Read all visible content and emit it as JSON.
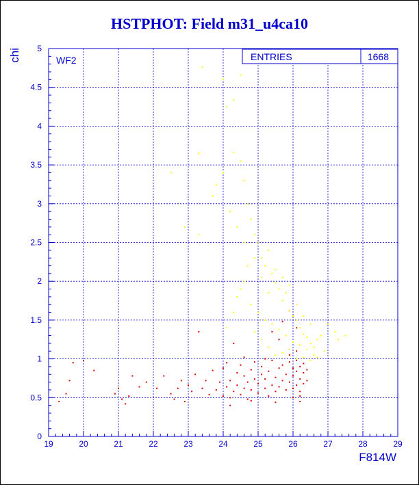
{
  "header": {
    "title": "HSTPHOT: Field m31_u4ca10"
  },
  "chart_data": {
    "type": "scatter",
    "title": "HSTPHOT: Field m31_u4ca10",
    "xlabel": "F814W",
    "ylabel": "chi",
    "panel_label": "WF2",
    "stats": [
      {
        "label": "ENTRIES",
        "value": "1668"
      }
    ],
    "xlim": [
      19,
      29
    ],
    "ylim": [
      0,
      5
    ],
    "x_ticks": [
      19,
      20,
      21,
      22,
      23,
      24,
      25,
      26,
      27,
      28,
      29
    ],
    "y_ticks": [
      0,
      0.5,
      1,
      1.5,
      2,
      2.5,
      3,
      3.5,
      4,
      4.5,
      5
    ],
    "grid": true,
    "colors": {
      "axis": "#0000cc",
      "red_points": "#dd0000",
      "yellow_points": "#ffff00"
    },
    "series": [
      {
        "color": "#dd0000",
        "points": [
          [
            19.3,
            0.45
          ],
          [
            19.5,
            0.55
          ],
          [
            19.6,
            0.72
          ],
          [
            19.7,
            0.95
          ],
          [
            20.0,
            0.98
          ],
          [
            20.3,
            0.85
          ],
          [
            20.9,
            0.55
          ],
          [
            21.0,
            0.62
          ],
          [
            21.1,
            0.48
          ],
          [
            21.2,
            0.42
          ],
          [
            21.3,
            0.52
          ],
          [
            21.4,
            0.78
          ],
          [
            21.6,
            0.64
          ],
          [
            21.8,
            0.7
          ],
          [
            22.1,
            0.62
          ],
          [
            22.3,
            0.78
          ],
          [
            22.5,
            0.55
          ],
          [
            22.6,
            0.48
          ],
          [
            22.7,
            0.62
          ],
          [
            22.8,
            0.72
          ],
          [
            22.9,
            0.45
          ],
          [
            23.0,
            0.66
          ],
          [
            23.1,
            0.58
          ],
          [
            23.2,
            0.8
          ],
          [
            23.3,
            1.35
          ],
          [
            23.4,
            0.62
          ],
          [
            23.5,
            0.72
          ],
          [
            23.6,
            0.54
          ],
          [
            23.7,
            0.85
          ],
          [
            23.8,
            0.6
          ],
          [
            23.9,
            0.7
          ],
          [
            24.0,
            0.52
          ],
          [
            24.0,
            0.88
          ],
          [
            24.1,
            0.64
          ],
          [
            24.1,
            0.95
          ],
          [
            24.2,
            0.5
          ],
          [
            24.2,
            0.72
          ],
          [
            24.3,
            0.58
          ],
          [
            24.3,
            1.2
          ],
          [
            24.4,
            0.66
          ],
          [
            24.4,
            0.82
          ],
          [
            24.5,
            0.54
          ],
          [
            24.5,
            0.92
          ],
          [
            24.6,
            0.62
          ],
          [
            24.6,
            0.78
          ],
          [
            24.7,
            0.7
          ],
          [
            24.7,
            0.48
          ],
          [
            24.8,
            0.86
          ],
          [
            24.8,
            0.6
          ],
          [
            24.9,
            0.74
          ],
          [
            24.9,
            0.96
          ],
          [
            25.0,
            0.56
          ],
          [
            25.0,
            0.68
          ],
          [
            25.1,
            0.8
          ],
          [
            25.1,
            0.9
          ],
          [
            25.2,
            0.62
          ],
          [
            25.2,
            0.74
          ],
          [
            25.3,
            0.52
          ],
          [
            25.3,
            0.84
          ],
          [
            25.4,
            0.66
          ],
          [
            25.4,
            0.98
          ],
          [
            25.5,
            0.58
          ],
          [
            25.5,
            0.76
          ],
          [
            25.6,
            0.88
          ],
          [
            25.6,
            0.64
          ],
          [
            25.7,
            0.72
          ],
          [
            25.7,
            0.92
          ],
          [
            25.8,
            0.6
          ],
          [
            25.8,
            0.8
          ],
          [
            25.9,
            0.7
          ],
          [
            25.9,
            0.96
          ],
          [
            26.0,
            0.62
          ],
          [
            26.0,
            0.78
          ],
          [
            26.0,
            0.88
          ],
          [
            26.1,
            0.66
          ],
          [
            26.1,
            0.84
          ],
          [
            26.1,
            0.98
          ],
          [
            26.2,
            0.58
          ],
          [
            26.2,
            0.74
          ],
          [
            26.2,
            0.9
          ],
          [
            26.3,
            0.68
          ],
          [
            26.3,
            0.82
          ],
          [
            26.3,
            0.94
          ],
          [
            26.4,
            0.72
          ],
          [
            26.4,
            0.86
          ],
          [
            25.9,
            1.05
          ],
          [
            26.1,
            1.1
          ],
          [
            25.6,
            1.25
          ],
          [
            26.2,
            0.45
          ],
          [
            26.0,
            0.5
          ],
          [
            24.6,
            1.02
          ],
          [
            25.2,
            1.0
          ],
          [
            25.4,
            1.35
          ],
          [
            25.7,
            1.48
          ],
          [
            25.9,
            1.62
          ],
          [
            26.1,
            1.4
          ],
          [
            24.8,
            0.46
          ],
          [
            25.5,
            0.44
          ],
          [
            26.2,
            0.52
          ],
          [
            24.2,
            0.4
          ]
        ]
      },
      {
        "color": "#ffff00",
        "points": [
          [
            23.4,
            4.76
          ],
          [
            24.0,
            4.6
          ],
          [
            24.1,
            4.25
          ],
          [
            24.3,
            4.34
          ],
          [
            24.5,
            4.66
          ],
          [
            24.3,
            3.66
          ],
          [
            24.5,
            3.55
          ],
          [
            23.8,
            3.24
          ],
          [
            24.0,
            3.4
          ],
          [
            24.6,
            3.3
          ],
          [
            24.7,
            3.0
          ],
          [
            24.8,
            2.8
          ],
          [
            24.9,
            2.6
          ],
          [
            25.0,
            2.5
          ],
          [
            25.1,
            2.3
          ],
          [
            25.2,
            2.2
          ],
          [
            25.3,
            2.4
          ],
          [
            25.4,
            2.1
          ],
          [
            25.5,
            1.98
          ],
          [
            25.6,
            1.9
          ],
          [
            25.7,
            1.75
          ],
          [
            25.8,
            1.85
          ],
          [
            25.9,
            1.62
          ],
          [
            26.0,
            1.55
          ],
          [
            26.1,
            1.5
          ],
          [
            26.2,
            1.4
          ],
          [
            26.3,
            1.32
          ],
          [
            26.4,
            1.28
          ],
          [
            26.5,
            1.2
          ],
          [
            26.6,
            1.15
          ],
          [
            26.8,
            1.3
          ],
          [
            27.0,
            1.45
          ],
          [
            27.2,
            1.35
          ],
          [
            27.3,
            1.25
          ],
          [
            27.5,
            1.3
          ],
          [
            26.9,
            1.1
          ],
          [
            24.4,
            1.8
          ],
          [
            24.6,
            2.0
          ],
          [
            24.8,
            1.7
          ],
          [
            25.0,
            1.6
          ],
          [
            25.2,
            1.5
          ],
          [
            25.4,
            1.45
          ],
          [
            25.6,
            1.38
          ],
          [
            25.8,
            1.3
          ],
          [
            26.0,
            1.22
          ],
          [
            26.2,
            1.18
          ],
          [
            26.4,
            1.12
          ],
          [
            26.6,
            1.05
          ],
          [
            26.7,
            1.02
          ],
          [
            24.2,
            2.9
          ],
          [
            24.4,
            2.7
          ],
          [
            24.6,
            2.5
          ],
          [
            24.9,
            2.3
          ],
          [
            25.1,
            2.05
          ],
          [
            25.3,
            1.85
          ],
          [
            23.7,
            3.1
          ],
          [
            23.3,
            3.65
          ],
          [
            22.5,
            3.4
          ],
          [
            22.9,
            2.7
          ],
          [
            23.3,
            2.6
          ],
          [
            24.1,
            1.4
          ],
          [
            24.3,
            1.6
          ],
          [
            24.5,
            1.9
          ],
          [
            24.7,
            2.2
          ],
          [
            25.5,
            2.15
          ],
          [
            25.7,
            2.05
          ],
          [
            25.9,
            1.95
          ],
          [
            26.1,
            1.7
          ],
          [
            26.3,
            1.55
          ],
          [
            26.5,
            1.45
          ],
          [
            26.7,
            1.25
          ],
          [
            24.9,
            1.35
          ],
          [
            25.1,
            1.25
          ],
          [
            25.3,
            1.15
          ],
          [
            25.5,
            1.05
          ],
          [
            25.7,
            1.08
          ],
          [
            25.9,
            1.12
          ],
          [
            26.1,
            1.0
          ],
          [
            26.3,
            1.02
          ],
          [
            26.5,
            0.98
          ]
        ]
      }
    ]
  }
}
